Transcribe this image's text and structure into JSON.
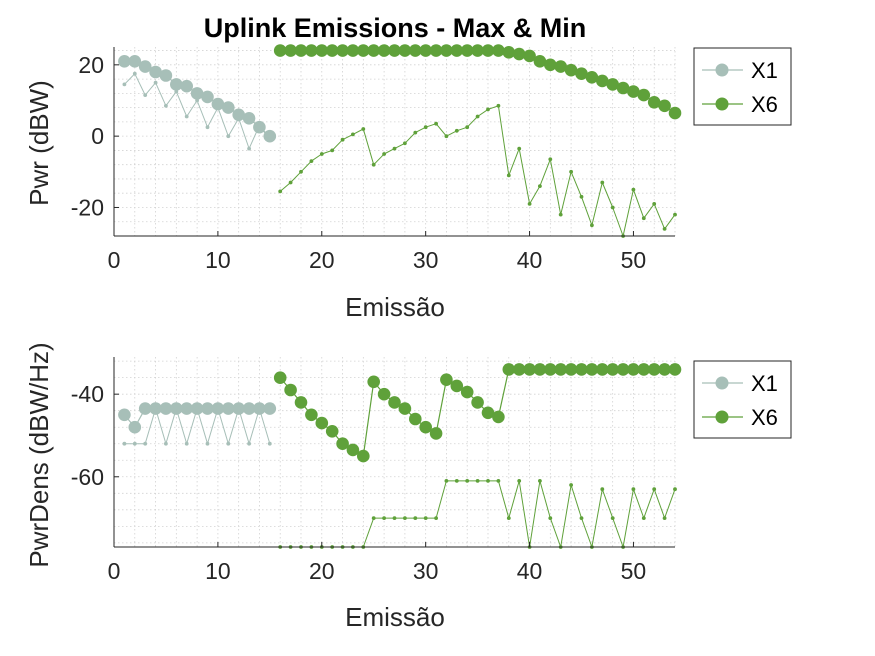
{
  "chart_data": [
    {
      "type": "line",
      "title": "Uplink Emissions - Max & Min",
      "xlabel": "Emissão",
      "ylabel": "Pwr (dBW)",
      "xlim": [
        0,
        54
      ],
      "ylim": [
        -28,
        25
      ],
      "xticks": [
        0,
        10,
        20,
        30,
        40,
        50
      ],
      "yticks": [
        -20,
        0,
        20
      ],
      "grid": "minor-dotted",
      "legend_position": "outside-right",
      "series": [
        {
          "name": "X1",
          "role": "max",
          "color": "#a7bfb8",
          "marker": "large",
          "x": [
            1,
            2,
            3,
            4,
            5,
            6,
            7,
            8,
            9,
            10,
            11,
            12,
            13,
            14,
            15
          ],
          "y": [
            21,
            21,
            19.5,
            18,
            17,
            14.5,
            14,
            12,
            11,
            9,
            8,
            6,
            5,
            2.5,
            0
          ]
        },
        {
          "name": "X1",
          "role": "min",
          "color": "#a7bfb8",
          "marker": "small",
          "x": [
            1,
            2,
            3,
            4,
            5,
            6,
            7,
            8,
            9,
            10,
            11,
            12,
            13,
            14,
            15
          ],
          "y": [
            14.5,
            17.5,
            11.5,
            15,
            8.5,
            12.5,
            5.5,
            10,
            2.5,
            8,
            0,
            5,
            -3.5,
            3,
            -1
          ]
        },
        {
          "name": "X6",
          "role": "max",
          "color": "#5fa13a",
          "marker": "large",
          "x": [
            16,
            17,
            18,
            19,
            20,
            21,
            22,
            23,
            24,
            25,
            26,
            27,
            28,
            29,
            30,
            31,
            32,
            33,
            34,
            35,
            36,
            37,
            38,
            39,
            40,
            41,
            42,
            43,
            44,
            45,
            46,
            47,
            48,
            49,
            50,
            51,
            52,
            53,
            54
          ],
          "y": [
            24,
            24,
            24,
            24,
            24,
            24,
            24,
            24,
            24,
            24,
            24,
            24,
            24,
            24,
            24,
            24,
            24,
            24,
            24,
            24,
            24,
            24,
            23.5,
            23,
            22.5,
            21,
            20,
            19.5,
            18.5,
            17.5,
            16.5,
            15.5,
            14.5,
            13.5,
            12.5,
            11.5,
            9.5,
            8.5,
            6.5
          ]
        },
        {
          "name": "X6",
          "role": "min",
          "color": "#5fa13a",
          "marker": "small",
          "x": [
            16,
            17,
            18,
            19,
            20,
            21,
            22,
            23,
            24,
            25,
            26,
            27,
            28,
            29,
            30,
            31,
            32,
            33,
            34,
            35,
            36,
            37,
            38,
            39,
            40,
            41,
            42,
            43,
            44,
            45,
            46,
            47,
            48,
            49,
            50,
            51,
            52,
            53,
            54
          ],
          "y": [
            -15.5,
            -13,
            -10,
            -7,
            -5,
            -4,
            -1,
            0.5,
            2,
            -8,
            -5,
            -3.5,
            -2,
            1,
            2.5,
            3.5,
            0,
            1.5,
            2.5,
            5.5,
            7.5,
            8.5,
            -11,
            -3.5,
            -19,
            -14,
            -6.5,
            -22,
            -10,
            -17,
            -25,
            -13,
            -20,
            -28,
            -15,
            -23,
            -19,
            -26,
            -22
          ]
        }
      ]
    },
    {
      "type": "line",
      "title": "",
      "xlabel": "Emissão",
      "ylabel": "PwrDens (dBW/Hz)",
      "xlim": [
        0,
        54
      ],
      "ylim": [
        -77,
        -31
      ],
      "xticks": [
        0,
        10,
        20,
        30,
        40,
        50
      ],
      "yticks": [
        -60,
        -40
      ],
      "grid": "minor-dotted",
      "legend_position": "outside-right",
      "series": [
        {
          "name": "X1",
          "role": "max",
          "color": "#a7bfb8",
          "marker": "large",
          "x": [
            1,
            2,
            3,
            4,
            5,
            6,
            7,
            8,
            9,
            10,
            11,
            12,
            13,
            14,
            15
          ],
          "y": [
            -45,
            -48,
            -43.5,
            -43.5,
            -43.5,
            -43.5,
            -43.5,
            -43.5,
            -43.5,
            -43.5,
            -43.5,
            -43.5,
            -43.5,
            -43.5,
            -43.5
          ]
        },
        {
          "name": "X1",
          "role": "min",
          "color": "#a7bfb8",
          "marker": "small",
          "x": [
            1,
            2,
            3,
            4,
            5,
            6,
            7,
            8,
            9,
            10,
            11,
            12,
            13,
            14,
            15
          ],
          "y": [
            -52,
            -52,
            -52,
            -43.5,
            -52,
            -43.5,
            -52,
            -43.5,
            -52,
            -43.5,
            -52,
            -43.5,
            -52,
            -43.5,
            -52
          ]
        },
        {
          "name": "X6",
          "role": "max",
          "color": "#5fa13a",
          "marker": "large",
          "x": [
            16,
            17,
            18,
            19,
            20,
            21,
            22,
            23,
            24,
            25,
            26,
            27,
            28,
            29,
            30,
            31,
            32,
            33,
            34,
            35,
            36,
            37,
            38,
            39,
            40,
            41,
            42,
            43,
            44,
            45,
            46,
            47,
            48,
            49,
            50,
            51,
            52,
            53,
            54
          ],
          "y": [
            -36,
            -39,
            -42,
            -45,
            -47,
            -49,
            -52,
            -53.5,
            -55,
            -37,
            -40,
            -42,
            -43.5,
            -46,
            -48,
            -49.5,
            -36.5,
            -38,
            -39.5,
            -42,
            -44.5,
            -45.5,
            -34,
            -34,
            -34,
            -34,
            -34,
            -34,
            -34,
            -34,
            -34,
            -34,
            -34,
            -34,
            -34,
            -34,
            -34,
            -34,
            -34
          ]
        },
        {
          "name": "X6",
          "role": "min",
          "color": "#5fa13a",
          "marker": "small",
          "x": [
            16,
            17,
            18,
            19,
            20,
            21,
            22,
            23,
            24,
            25,
            26,
            27,
            28,
            29,
            30,
            31,
            32,
            33,
            34,
            35,
            36,
            37,
            38,
            39,
            40,
            41,
            42,
            43,
            44,
            45,
            46,
            47,
            48,
            49,
            50,
            51,
            52,
            53,
            54
          ],
          "y": [
            -77,
            -77,
            -77,
            -77,
            -77,
            -77,
            -77,
            -77,
            -77,
            -70,
            -70,
            -70,
            -70,
            -70,
            -70,
            -70,
            -61,
            -61,
            -61,
            -61,
            -61,
            -61,
            -70,
            -61,
            -77,
            -61,
            -70,
            -77,
            -62,
            -70,
            -77,
            -63,
            -70,
            -77,
            -63,
            -70,
            -63,
            -70,
            -63
          ]
        }
      ]
    }
  ],
  "legend": {
    "entries": [
      {
        "label": "X1",
        "color": "#a7bfb8"
      },
      {
        "label": "X6",
        "color": "#5fa13a"
      }
    ]
  }
}
